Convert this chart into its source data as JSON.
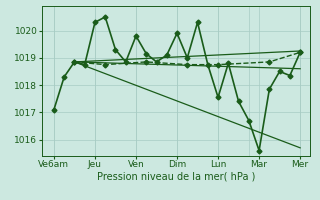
{
  "bg_color": "#cce8e0",
  "line_color": "#1a5c1a",
  "grid_color": "#a8ccc4",
  "xlabel": "Pression niveau de la mer( hPa )",
  "xlabel_fontsize": 7,
  "yticks": [
    1016,
    1017,
    1018,
    1019,
    1020
  ],
  "ylim": [
    1015.4,
    1020.9
  ],
  "xlim": [
    -0.1,
    13.0
  ],
  "xtick_labels": [
    "Ve6am",
    "Jeu",
    "Ven",
    "Dim",
    "Lun",
    "Mar",
    "Mer"
  ],
  "xtick_positions": [
    0.5,
    2.5,
    4.5,
    6.5,
    8.5,
    10.5,
    12.5
  ],
  "main_series": {
    "x": [
      0.5,
      1.0,
      1.5,
      2.0,
      2.5,
      3.0,
      3.5,
      4.0,
      4.5,
      5.0,
      5.5,
      6.0,
      6.5,
      7.0,
      7.5,
      8.0,
      8.5,
      9.0,
      9.5,
      10.0,
      10.5,
      11.0,
      11.5,
      12.0,
      12.5
    ],
    "y": [
      1017.1,
      1018.3,
      1018.85,
      1018.75,
      1020.3,
      1020.5,
      1019.3,
      1018.85,
      1019.8,
      1019.15,
      1018.85,
      1019.1,
      1019.9,
      1019.0,
      1020.3,
      1018.75,
      1017.55,
      1018.8,
      1017.4,
      1016.7,
      1015.6,
      1017.85,
      1018.5,
      1018.35,
      1019.2
    ],
    "linewidth": 1.2,
    "markersize": 2.5
  },
  "dashed_series": {
    "x": [
      1.5,
      3.0,
      5.0,
      7.0,
      8.5,
      11.0,
      12.5
    ],
    "y": [
      1018.85,
      1018.75,
      1018.85,
      1018.75,
      1018.75,
      1018.85,
      1019.2
    ],
    "linewidth": 1.0,
    "markersize": 2.5
  },
  "fan_lines": [
    {
      "x": [
        1.5,
        12.5
      ],
      "y": [
        1018.85,
        1015.7
      ]
    },
    {
      "x": [
        1.5,
        12.5
      ],
      "y": [
        1018.85,
        1018.6
      ]
    },
    {
      "x": [
        1.5,
        12.5
      ],
      "y": [
        1018.85,
        1019.25
      ]
    }
  ]
}
